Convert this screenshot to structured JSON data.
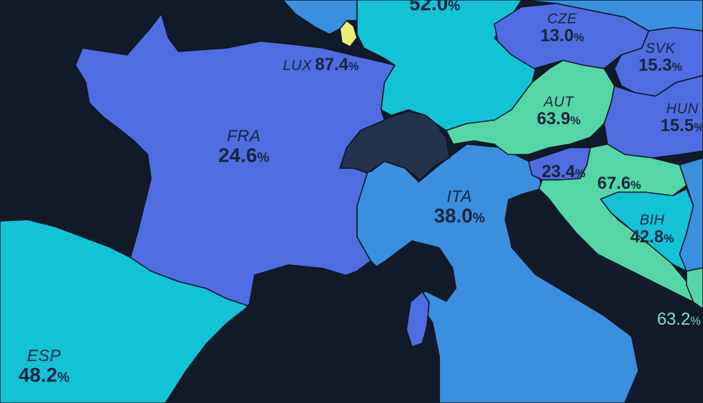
{
  "countries": [
    {
      "id": "fra",
      "code": "FRA",
      "value": "24.6",
      "unit": "%"
    },
    {
      "id": "esp",
      "code": "ESP",
      "value": "48.2",
      "unit": "%"
    },
    {
      "id": "ita",
      "code": "ITA",
      "value": "38.0",
      "unit": "%"
    },
    {
      "id": "lux",
      "code": "LUX",
      "value": "87.4",
      "unit": "%"
    },
    {
      "id": "cze",
      "code": "CZE",
      "value": "13.0",
      "unit": "%"
    },
    {
      "id": "svk",
      "code": "SVK",
      "value": "15.3",
      "unit": "%"
    },
    {
      "id": "aut",
      "code": "AUT",
      "value": "63.9",
      "unit": "%"
    },
    {
      "id": "hun",
      "code": "HUN",
      "value": "15.5",
      "unit": "%"
    },
    {
      "id": "bih",
      "code": "BIH",
      "value": "42.8",
      "unit": "%"
    },
    {
      "id": "svn",
      "code": "",
      "value": "23.4",
      "unit": "%"
    },
    {
      "id": "hrv",
      "code": "",
      "value": "67.6",
      "unit": "%"
    },
    {
      "id": "mne",
      "code": "",
      "value": "63.2",
      "unit": "%"
    },
    {
      "id": "deu",
      "code": "",
      "value": "52.0",
      "unit": "%"
    }
  ],
  "colors": {
    "background": "#101a28",
    "blue_low": "#4f6de0",
    "blue_mid": "#3a8fde",
    "cyan": "#12c3d6",
    "mint": "#55d6a7",
    "yellow": "#e8ec7a",
    "no_data": "#22324d"
  }
}
